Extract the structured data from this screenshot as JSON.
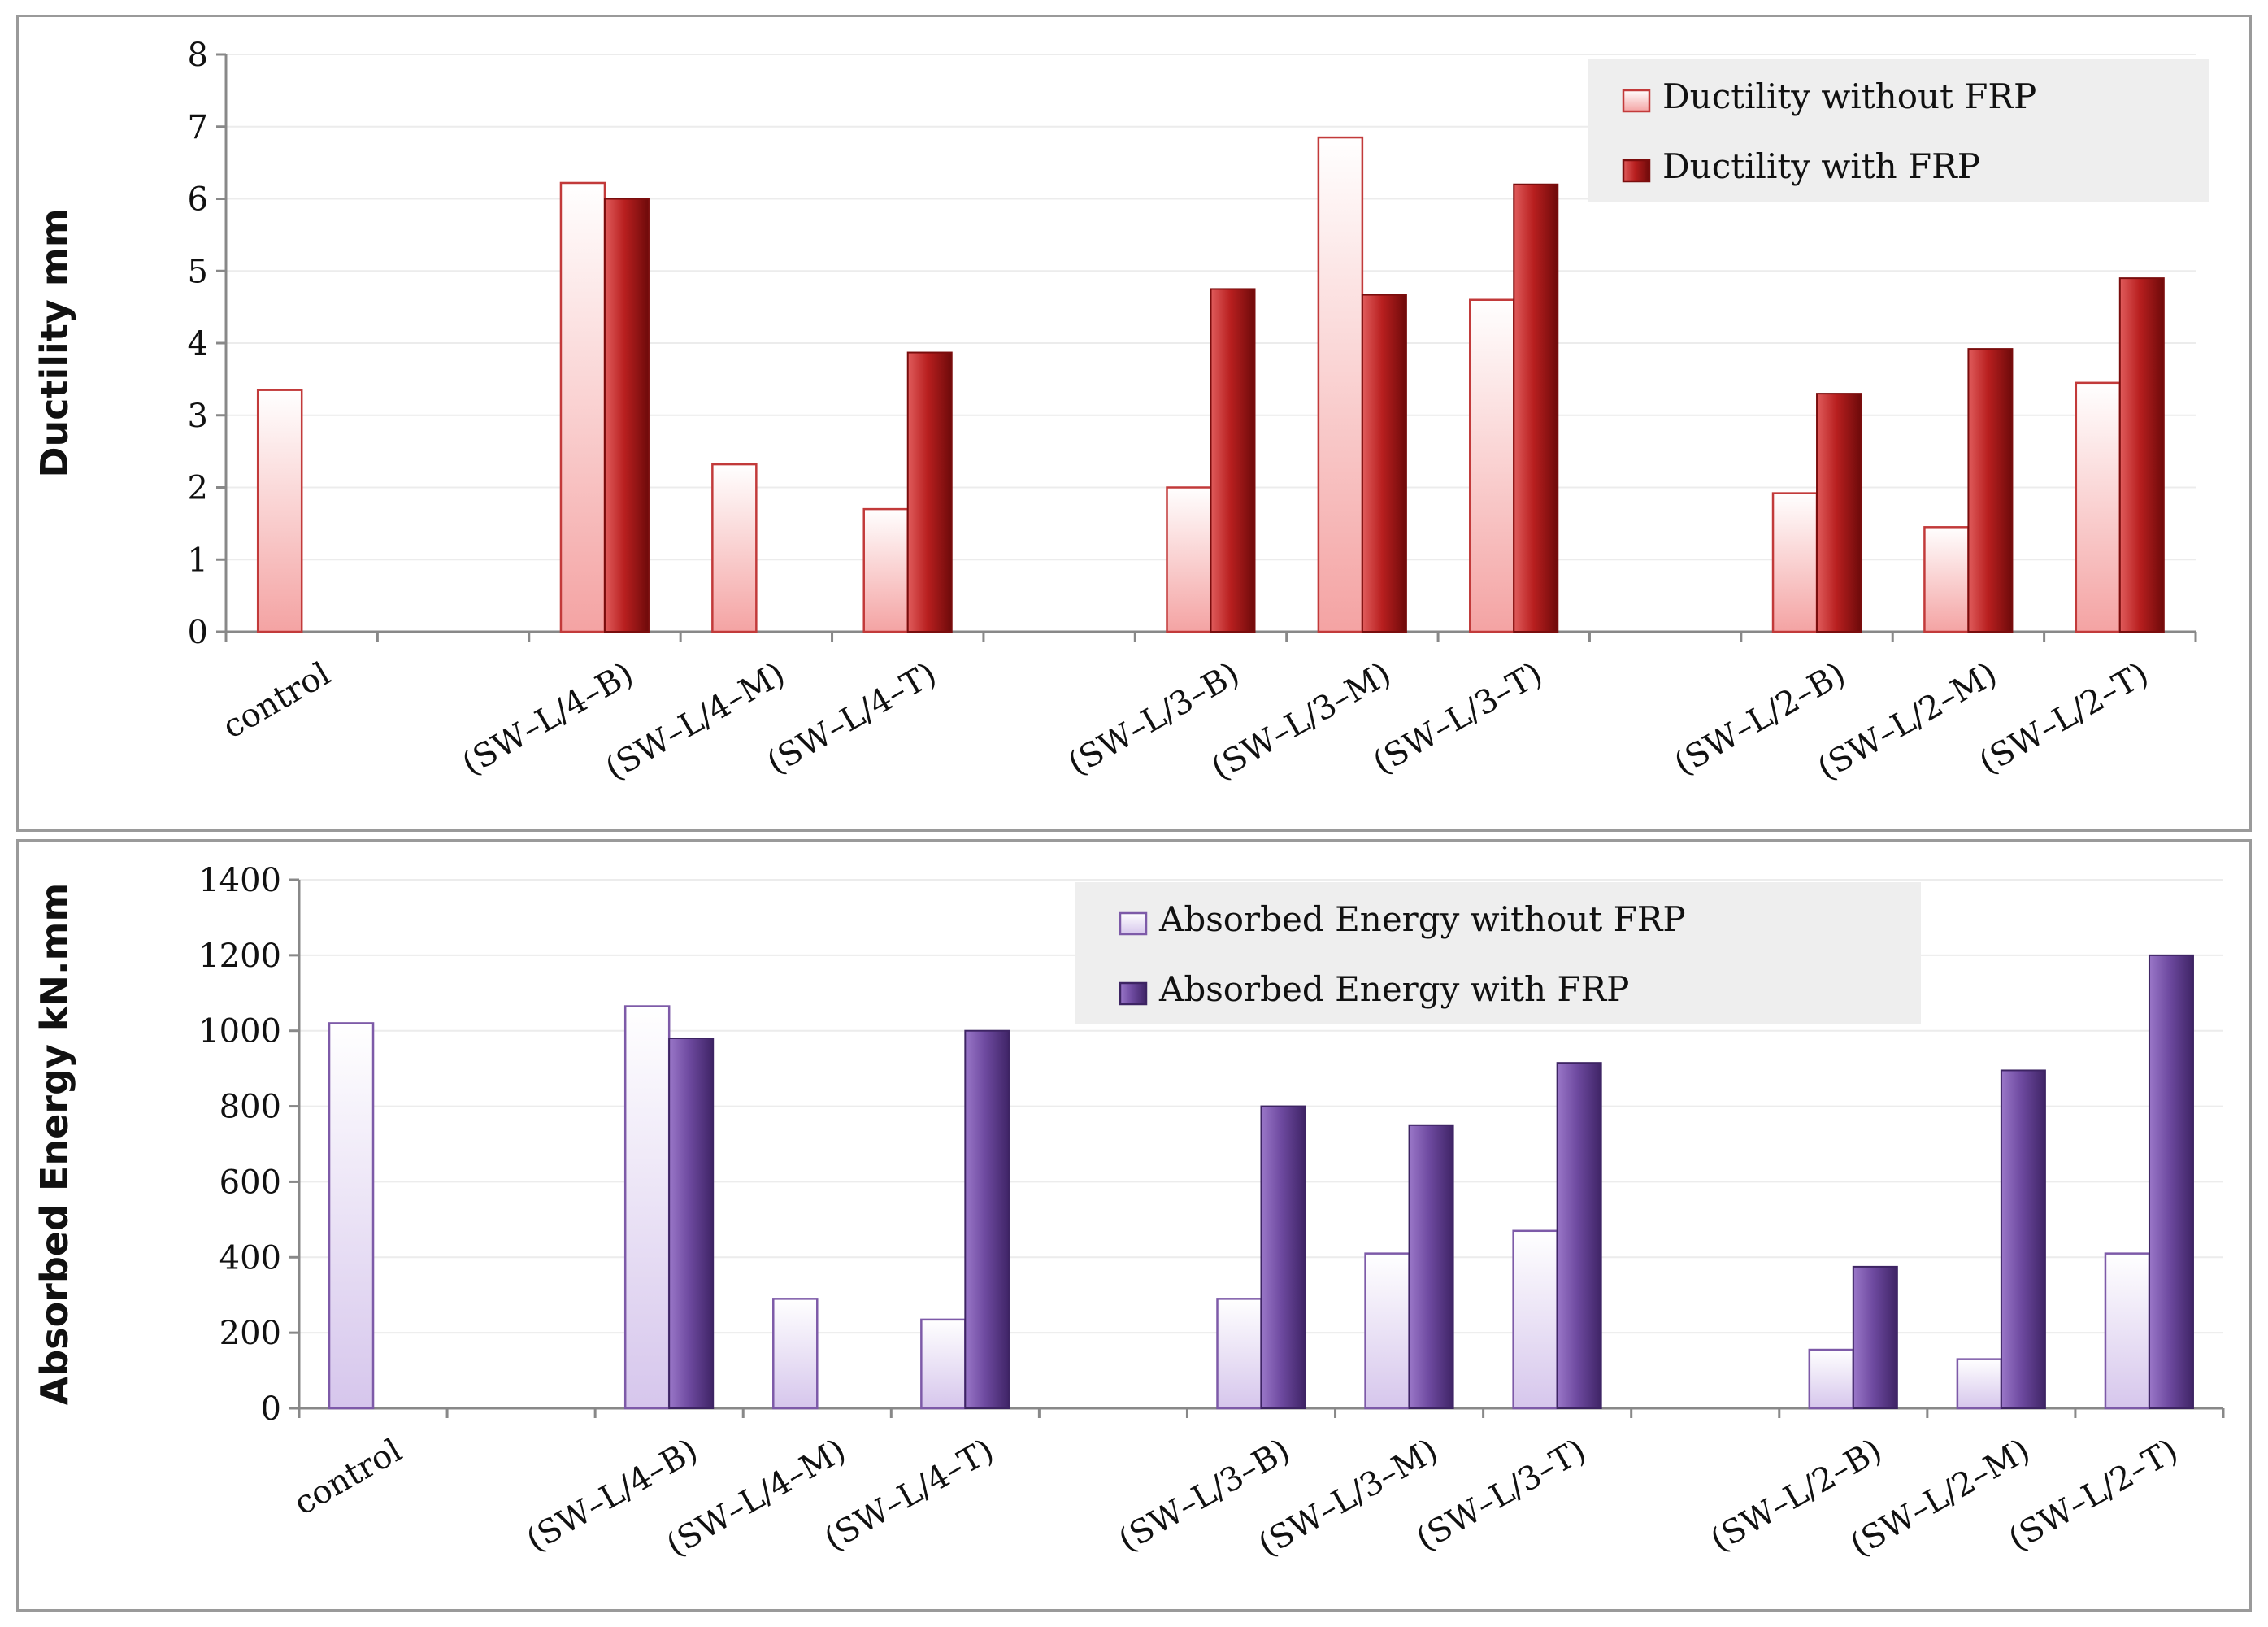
{
  "chart_data": [
    {
      "type": "bar",
      "title": "",
      "xlabel": "",
      "ylabel": "Ductility mm",
      "ylim": [
        0,
        8
      ],
      "yticks": [
        0,
        1,
        2,
        3,
        4,
        5,
        6,
        7,
        8
      ],
      "grid": true,
      "legend_position": "top-right",
      "categories": [
        "control",
        "",
        "(SW–L/4–B)",
        "(SW–L/4–M)",
        "(SW–L/4–T)",
        "",
        "(SW–L/3–B)",
        "(SW–L/3–M)",
        "(SW–L/3–T)",
        "",
        "(SW–L/2–B)",
        "(SW–L/2–M)",
        "(SW–L/2–T)"
      ],
      "series": [
        {
          "name": "Ductility without FRP",
          "values": [
            3.35,
            null,
            6.22,
            2.32,
            1.7,
            null,
            2.0,
            6.85,
            4.6,
            null,
            1.92,
            1.45,
            3.45
          ]
        },
        {
          "name": "Ductility with FRP",
          "values": [
            null,
            null,
            6.0,
            null,
            3.87,
            null,
            4.75,
            4.67,
            6.2,
            null,
            3.3,
            3.92,
            4.9
          ]
        }
      ],
      "colors": {
        "light_top": "#ffffff",
        "light_bottom": "#f4a3a3",
        "light_edge": "#c23a3a",
        "dark_left": "#e05c5c",
        "dark_mid": "#b81f1f",
        "dark_right": "#6e0a0a",
        "dark_edge": "#7a0d0d"
      }
    },
    {
      "type": "bar",
      "title": "",
      "xlabel": "",
      "ylabel": "Absorbed Energy kN.mm",
      "ylim": [
        0,
        1400
      ],
      "yticks": [
        0,
        200,
        400,
        600,
        800,
        1000,
        1200,
        1400
      ],
      "grid": true,
      "legend_position": "top-right",
      "categories": [
        "control",
        "",
        "(SW–L/4–B)",
        "(SW–L/4–M)",
        "(SW–L/4–T)",
        "",
        "(SW–L/3–B)",
        "(SW–L/3–M)",
        "(SW–L/3–T)",
        "",
        "(SW–L/2–B)",
        "(SW–L/2–M)",
        "(SW–L/2–T)"
      ],
      "series": [
        {
          "name": "Absorbed Energy without FRP",
          "values": [
            1020,
            null,
            1065,
            290,
            235,
            null,
            290,
            410,
            470,
            null,
            155,
            130,
            410
          ]
        },
        {
          "name": "Absorbed Energy with FRP",
          "values": [
            null,
            null,
            980,
            null,
            1000,
            null,
            800,
            750,
            915,
            null,
            375,
            895,
            1200
          ]
        }
      ],
      "colors": {
        "light_top": "#ffffff",
        "light_bottom": "#d6c6ec",
        "light_edge": "#7d5aa8",
        "dark_left": "#9a77c8",
        "dark_mid": "#6e4aa0",
        "dark_right": "#3f2466",
        "dark_edge": "#3d2463"
      }
    }
  ]
}
